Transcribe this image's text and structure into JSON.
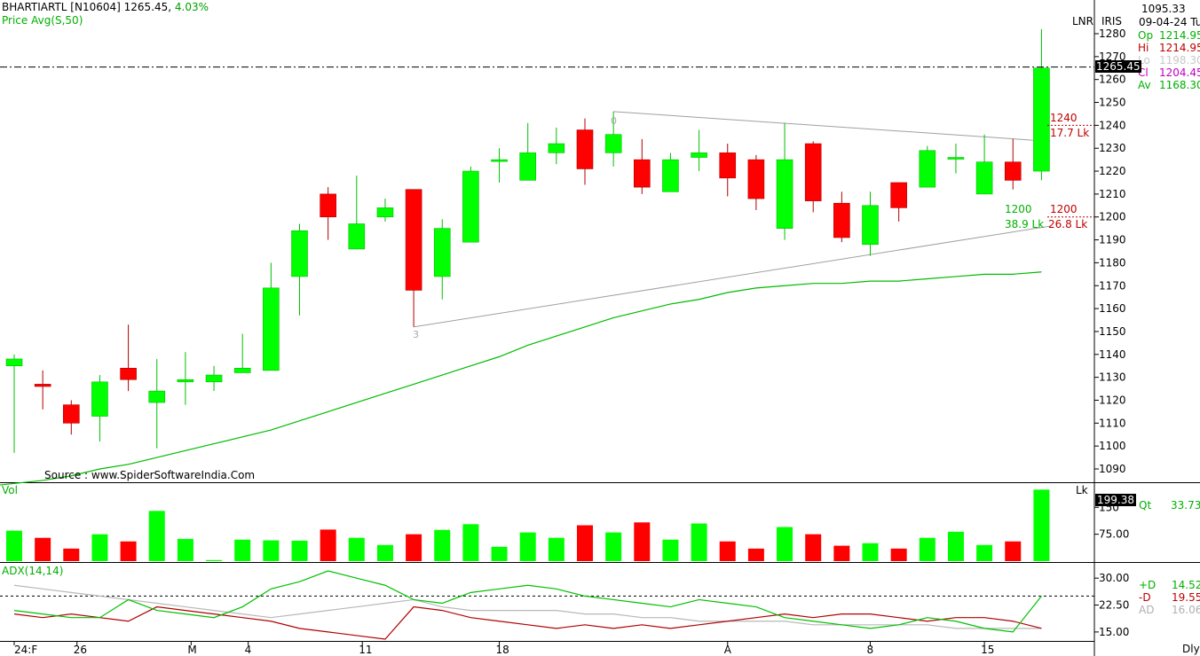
{
  "header": {
    "symbol": "BHARTIARTL [N10604]",
    "last_price": "1265.45,",
    "change_pct": "4.03%",
    "indicator": "Price  Avg(S,50)",
    "top_right_value": "1095.33",
    "date_line": "09-04-24 Tu",
    "lnr": "LNR",
    "iris": "IRIS"
  },
  "ohlc_panel": [
    {
      "key": "Op",
      "value": "1214.95",
      "color": "#00b000"
    },
    {
      "key": "Hi",
      "value": "1214.95",
      "color": "#c00000"
    },
    {
      "key": "Lo",
      "value": "1198.30",
      "color": "#c8c8c8"
    },
    {
      "key": "Cl",
      "value": "1204.45",
      "color": "#c000c0"
    },
    {
      "key": "Av",
      "value": "1168.30",
      "color": "#00b000"
    }
  ],
  "source_note": "Source : www.SpiderSoftwareIndia.Com",
  "current_price_tag": "1265.45",
  "annotations": {
    "upper_level": "1240",
    "upper_vol": "17.7 Lk",
    "lower_green_level": "1200",
    "lower_green_vol": "38.9 Lk",
    "lower_red_level": "1200",
    "lower_red_vol": "26.8 Lk",
    "pivot_high_label": "0",
    "pivot_low_label": "3"
  },
  "volume_panel": {
    "label": "Vol",
    "unit": "Lk",
    "last_tag": "199.38",
    "qt_label": "Qt",
    "qt_value": "33.73"
  },
  "adx_panel": {
    "label": "ADX(14,14)",
    "legend": [
      {
        "key": "+D",
        "value": "14.52",
        "color": "#00b000"
      },
      {
        "key": "-D",
        "value": "19.55",
        "color": "#c00000"
      },
      {
        "key": "AD",
        "value": "16.06",
        "color": "#b0b0b0"
      }
    ]
  },
  "timeframe": "Dly",
  "colors": {
    "up": "#00ff00",
    "down": "#ff0000",
    "up_edge": "#00c000",
    "down_edge": "#b00000",
    "avg_line": "#00bb00"
  },
  "chart_data": {
    "type": "candlestick",
    "title": "BHARTIARTL [N10604]",
    "x_ticks": [
      "24:F",
      "26",
      "M",
      "4",
      "11",
      "18",
      "A",
      "8",
      "15"
    ],
    "y_ticks": [
      1090,
      1100,
      1110,
      1120,
      1130,
      1140,
      1150,
      1160,
      1170,
      1180,
      1190,
      1200,
      1210,
      1220,
      1230,
      1240,
      1250,
      1260,
      1270,
      1280
    ],
    "ylim": [
      1083,
      1287
    ],
    "candles": [
      {
        "o": 1135,
        "h": 1140,
        "l": 1097,
        "c": 1138
      },
      {
        "o": 1127,
        "h": 1133,
        "l": 1116,
        "c": 1126
      },
      {
        "o": 1118,
        "h": 1120,
        "l": 1105,
        "c": 1110
      },
      {
        "o": 1113,
        "h": 1131,
        "l": 1102,
        "c": 1128
      },
      {
        "o": 1134,
        "h": 1153,
        "l": 1124,
        "c": 1129
      },
      {
        "o": 1119,
        "h": 1138,
        "l": 1099,
        "c": 1124
      },
      {
        "o": 1128,
        "h": 1141,
        "l": 1118,
        "c": 1129
      },
      {
        "o": 1128,
        "h": 1135,
        "l": 1124,
        "c": 1131
      },
      {
        "o": 1132,
        "h": 1149,
        "l": 1132,
        "c": 1134
      },
      {
        "o": 1133,
        "h": 1180,
        "l": 1133,
        "c": 1169
      },
      {
        "o": 1174,
        "h": 1197,
        "l": 1157,
        "c": 1194
      },
      {
        "o": 1210,
        "h": 1213,
        "l": 1190,
        "c": 1200
      },
      {
        "o": 1186,
        "h": 1218,
        "l": 1186,
        "c": 1197
      },
      {
        "o": 1200,
        "h": 1208,
        "l": 1198,
        "c": 1204
      },
      {
        "o": 1212,
        "h": 1212,
        "l": 1152,
        "c": 1168
      },
      {
        "o": 1174,
        "h": 1199,
        "l": 1164,
        "c": 1195
      },
      {
        "o": 1189,
        "h": 1222,
        "l": 1189,
        "c": 1220
      },
      {
        "o": 1225,
        "h": 1230,
        "l": 1215,
        "c": 1225
      },
      {
        "o": 1216,
        "h": 1241,
        "l": 1216,
        "c": 1228
      },
      {
        "o": 1228,
        "h": 1239,
        "l": 1223,
        "c": 1232
      },
      {
        "o": 1238,
        "h": 1243,
        "l": 1214,
        "c": 1221
      },
      {
        "o": 1228,
        "h": 1246,
        "l": 1222,
        "c": 1236
      },
      {
        "o": 1225,
        "h": 1234,
        "l": 1210,
        "c": 1213
      },
      {
        "o": 1211,
        "h": 1228,
        "l": 1211,
        "c": 1225
      },
      {
        "o": 1226,
        "h": 1238,
        "l": 1220,
        "c": 1228
      },
      {
        "o": 1228,
        "h": 1232,
        "l": 1209,
        "c": 1217
      },
      {
        "o": 1225,
        "h": 1227,
        "l": 1203,
        "c": 1208
      },
      {
        "o": 1195,
        "h": 1241,
        "l": 1190,
        "c": 1225
      },
      {
        "o": 1232,
        "h": 1233,
        "l": 1202,
        "c": 1207
      },
      {
        "o": 1206,
        "h": 1211,
        "l": 1189,
        "c": 1191
      },
      {
        "o": 1188,
        "h": 1211,
        "l": 1183,
        "c": 1205
      },
      {
        "o": 1215,
        "h": 1215,
        "l": 1198,
        "c": 1204
      },
      {
        "o": 1213,
        "h": 1231,
        "l": 1213,
        "c": 1229
      },
      {
        "o": 1226,
        "h": 1232,
        "l": 1219,
        "c": 1226
      },
      {
        "o": 1210,
        "h": 1236,
        "l": 1210,
        "c": 1224
      },
      {
        "o": 1224,
        "h": 1234,
        "l": 1212,
        "c": 1216
      },
      {
        "o": 1220,
        "h": 1282,
        "l": 1216,
        "c": 1265
      }
    ],
    "avg50": [
      1083,
      1085,
      1087,
      1090,
      1092,
      1095,
      1098,
      1101,
      1104,
      1107,
      1111,
      1115,
      1119,
      1123,
      1127,
      1131,
      1135,
      1139,
      1144,
      1148,
      1152,
      1156,
      1159,
      1162,
      1164,
      1167,
      1169,
      1170,
      1171,
      1171,
      1172,
      1172,
      1173,
      1174,
      1175,
      1175,
      1176
    ],
    "trendlines": [
      {
        "from": {
          "bar": 21,
          "y": 1246
        },
        "to": {
          "bar": 36.3,
          "y": 1233
        }
      },
      {
        "from": {
          "bar": 14,
          "y": 1152
        },
        "to": {
          "bar": 36.3,
          "y": 1196
        }
      }
    ],
    "volume": {
      "y_ticks": [
        75,
        150
      ],
      "ylim": [
        0,
        210
      ],
      "values": [
        85,
        65,
        35,
        75,
        55,
        140,
        62,
        3,
        60,
        58,
        57,
        88,
        65,
        45,
        75,
        87,
        103,
        40,
        80,
        65,
        100,
        80,
        108,
        60,
        105,
        55,
        35,
        95,
        75,
        43,
        50,
        35,
        65,
        82,
        45,
        55,
        199.38
      ]
    },
    "adx": {
      "y_ticks": [
        15,
        22.5,
        30
      ],
      "ylim": [
        13,
        33
      ],
      "reference_line": 25,
      "plus_di": [
        21,
        20,
        19,
        19,
        24,
        21,
        20,
        19,
        22,
        27,
        29,
        32,
        30,
        28,
        24,
        23,
        26,
        27,
        28,
        27,
        25,
        24,
        23,
        22,
        24,
        23,
        22,
        19,
        18,
        17,
        16,
        17,
        19,
        18,
        16,
        15,
        25
      ],
      "minus_di": [
        20,
        19,
        20,
        19,
        18,
        22,
        21,
        20,
        19,
        18,
        16,
        15,
        14,
        13,
        22,
        21,
        19,
        18,
        17,
        16,
        17,
        16,
        17,
        16,
        17,
        18,
        19,
        20,
        19,
        20,
        20,
        19,
        18,
        19,
        19,
        18,
        16
      ],
      "adx": [
        28,
        27,
        26,
        25,
        24,
        23,
        22,
        21,
        20,
        19,
        20,
        21,
        22,
        23,
        24,
        22,
        21,
        21,
        21,
        21,
        20,
        20,
        19,
        19,
        18,
        18,
        18,
        18,
        17,
        17,
        17,
        17,
        17,
        16,
        16,
        16,
        16
      ]
    }
  }
}
